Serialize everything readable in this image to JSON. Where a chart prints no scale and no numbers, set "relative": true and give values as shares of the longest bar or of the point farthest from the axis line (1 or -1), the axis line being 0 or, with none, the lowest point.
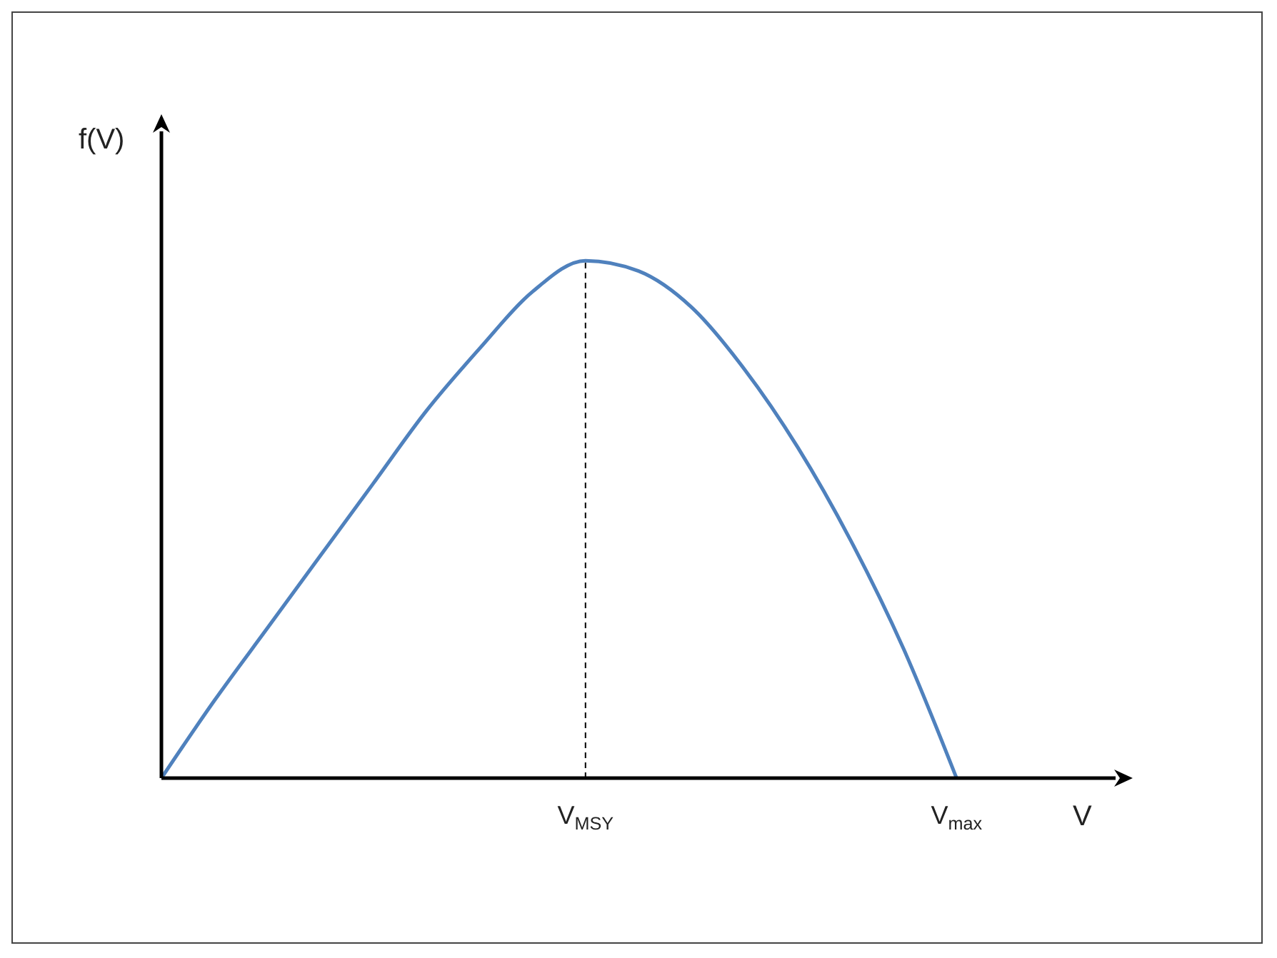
{
  "chart_data": {
    "type": "line",
    "relative": true,
    "xlabel": "V",
    "ylabel": "f(V)",
    "categories": [
      null,
      null,
      null,
      null,
      null,
      null,
      null,
      null,
      "V$_{MSY}$",
      null,
      null,
      null,
      null,
      null,
      null,
      "V$_{max}$",
      null,
      null,
      null
    ],
    "series": [
      {
        "color": "#4f81bd",
        "values": [
          0,
          0.15,
          0.29,
          0.43,
          0.57,
          0.71,
          0.83,
          0.94,
          1,
          0.98,
          0.91,
          0.79,
          0.64,
          0.46,
          0.25,
          0,
          null,
          null,
          null
        ]
      }
    ],
    "ref_lines": [
      {
        "axis": "x",
        "value": "V$_{MSY}$",
        "color": "#000000",
        "line_style": "dashed"
      }
    ],
    "grid": false,
    "legend": false,
    "marker": "none",
    "line_style": "solid"
  }
}
